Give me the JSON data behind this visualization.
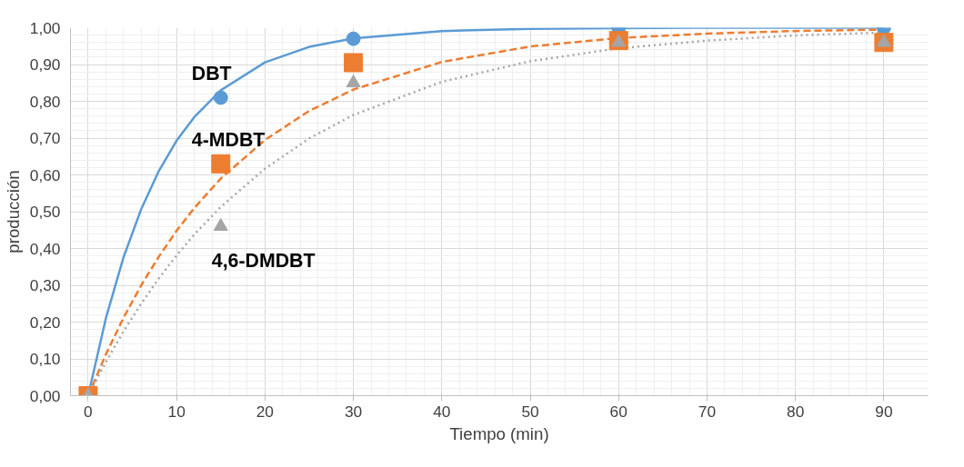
{
  "chart_data": {
    "type": "scatter",
    "xlabel": "Tiempo (min)",
    "ylabel": "producción",
    "xlim": [
      -2,
      95
    ],
    "ylim": [
      0,
      1
    ],
    "xticks": [
      0,
      10,
      20,
      30,
      40,
      50,
      60,
      70,
      80,
      90
    ],
    "yticks": [
      {
        "value": 0,
        "label": "0,00"
      },
      {
        "value": 0.1,
        "label": "0,10"
      },
      {
        "value": 0.2,
        "label": "0,20"
      },
      {
        "value": 0.3,
        "label": "0,30"
      },
      {
        "value": 0.4,
        "label": "0,40"
      },
      {
        "value": 0.5,
        "label": "0,50"
      },
      {
        "value": 0.6,
        "label": "0,60"
      },
      {
        "value": 0.7,
        "label": "0,70"
      },
      {
        "value": 0.8,
        "label": "0,80"
      },
      {
        "value": 0.9,
        "label": "0,90"
      },
      {
        "value": 1,
        "label": "1,00"
      }
    ],
    "grid": true,
    "series": [
      {
        "type": "line",
        "color": "#5b9bd5",
        "line_style": "solid",
        "x": [
          0,
          2,
          4,
          6,
          8,
          10,
          12,
          15,
          20,
          25,
          30,
          40,
          50,
          60,
          70,
          80,
          90
        ],
        "values": [
          0,
          0.21,
          0.376,
          0.507,
          0.611,
          0.693,
          0.757,
          0.83,
          0.906,
          0.948,
          0.971,
          0.991,
          0.997,
          0.999,
          1,
          1,
          1
        ]
      },
      {
        "type": "line",
        "color": "#ed7d31",
        "line_style": "dashed",
        "x": [
          0,
          2,
          4,
          6,
          8,
          10,
          12,
          15,
          20,
          25,
          30,
          40,
          50,
          60,
          70,
          80,
          90
        ],
        "values": [
          0,
          0.112,
          0.212,
          0.3,
          0.378,
          0.448,
          0.51,
          0.59,
          0.695,
          0.774,
          0.832,
          0.907,
          0.949,
          0.972,
          0.984,
          0.991,
          0.995
        ]
      },
      {
        "type": "line",
        "color": "#a5a5a5",
        "line_style": "dotted",
        "x": [
          0,
          2,
          4,
          6,
          8,
          10,
          12,
          15,
          20,
          25,
          30,
          40,
          50,
          60,
          70,
          80,
          90
        ],
        "values": [
          0,
          0.091,
          0.175,
          0.25,
          0.319,
          0.381,
          0.438,
          0.513,
          0.617,
          0.699,
          0.763,
          0.853,
          0.909,
          0.944,
          0.965,
          0.979,
          0.987
        ]
      },
      {
        "name": "DBT",
        "color": "#5b9bd5",
        "marker": "circle",
        "x": [
          15,
          30,
          60,
          90
        ],
        "values": [
          0.81,
          0.97,
          1,
          1
        ]
      },
      {
        "name": "4-MDBT",
        "color": "#ed7d31",
        "marker": "square",
        "x": [
          0,
          15,
          30,
          60,
          90
        ],
        "values": [
          0,
          0.63,
          0.905,
          0.965,
          0.96
        ]
      },
      {
        "name": "4,6-DMDBT",
        "color": "#a5a5a5",
        "marker": "triangle",
        "x": [
          0,
          15,
          30,
          60,
          90
        ],
        "values": [
          0,
          0.46,
          0.85,
          0.96,
          0.96
        ]
      }
    ]
  }
}
